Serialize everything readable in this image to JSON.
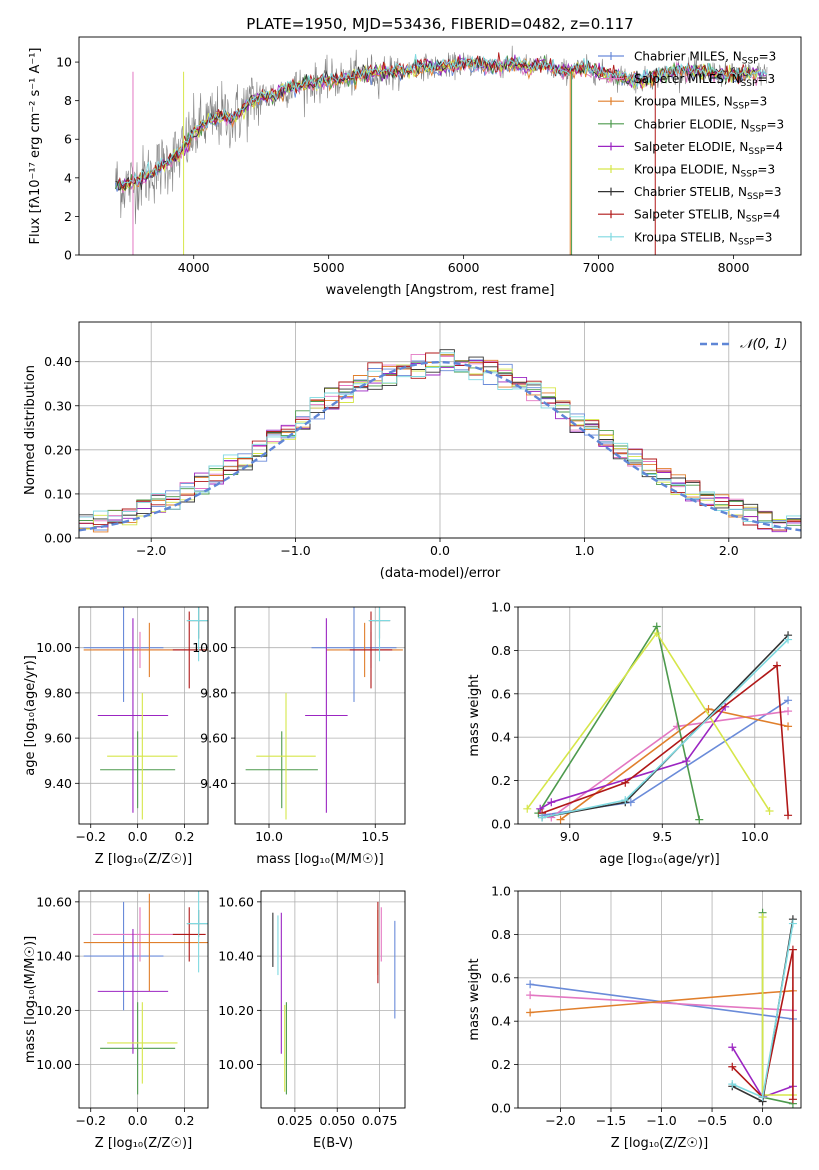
{
  "figure_title": "PLATE=1950, MJD=53436, FIBERID=0482, z=0.117",
  "models": [
    {
      "name": "Chabrier MILES",
      "nssp": "3",
      "color": "#6a8bd9"
    },
    {
      "name": "Salpeter MILES",
      "nssp": "3",
      "color": "#e377c2"
    },
    {
      "name": "Kroupa MILES",
      "nssp": "3",
      "color": "#e07f2c"
    },
    {
      "name": "Chabrier ELODIE",
      "nssp": "3",
      "color": "#4d9a4d"
    },
    {
      "name": "Salpeter ELODIE",
      "nssp": "4",
      "color": "#9b25c2"
    },
    {
      "name": "Kroupa ELODIE",
      "nssp": "3",
      "color": "#d6e64a"
    },
    {
      "name": "Chabrier STELIB",
      "nssp": "3",
      "color": "#333333"
    },
    {
      "name": "Salpeter STELIB",
      "nssp": "4",
      "color": "#b01818"
    },
    {
      "name": "Kroupa STELIB",
      "nssp": "3",
      "color": "#7fd9e0"
    }
  ],
  "chart_data": [
    {
      "id": "spectrum",
      "type": "line",
      "xlabel": "wavelength [Angstrom, rest frame]",
      "ylabel": "Flux [fλ10⁻¹⁷ erg cm⁻² s⁻¹ A⁻¹]",
      "xlim": [
        3150,
        8500
      ],
      "ylim": [
        0,
        11.3
      ],
      "xticks": [
        4000,
        5000,
        6000,
        7000,
        8000
      ],
      "yticks": [
        0,
        2,
        4,
        6,
        8,
        10
      ],
      "data_color": "#808080",
      "data_range": [
        3420,
        8250
      ],
      "continuum": [
        [
          3420,
          3.7
        ],
        [
          3500,
          3.6
        ],
        [
          3600,
          3.9
        ],
        [
          3700,
          4.3
        ],
        [
          3800,
          4.8
        ],
        [
          3900,
          5.3
        ],
        [
          4000,
          6.3
        ],
        [
          4100,
          6.9
        ],
        [
          4200,
          7.2
        ],
        [
          4300,
          7.1
        ],
        [
          4400,
          7.8
        ],
        [
          4500,
          8.2
        ],
        [
          4600,
          8.3
        ],
        [
          4700,
          8.7
        ],
        [
          4800,
          8.8
        ],
        [
          4900,
          8.9
        ],
        [
          5000,
          9.1
        ],
        [
          5100,
          9.1
        ],
        [
          5200,
          9.3
        ],
        [
          5300,
          9.4
        ],
        [
          5400,
          9.5
        ],
        [
          5500,
          9.5
        ],
        [
          5600,
          9.6
        ],
        [
          5700,
          9.8
        ],
        [
          5800,
          9.7
        ],
        [
          5900,
          9.8
        ],
        [
          6000,
          9.9
        ],
        [
          6100,
          9.9
        ],
        [
          6200,
          9.8
        ],
        [
          6300,
          9.8
        ],
        [
          6400,
          9.9
        ],
        [
          6500,
          9.7
        ],
        [
          6600,
          9.9
        ],
        [
          6700,
          9.5
        ],
        [
          6800,
          9.6
        ],
        [
          6900,
          9.7
        ],
        [
          7000,
          9.5
        ],
        [
          7100,
          9.3
        ],
        [
          7200,
          9.2
        ],
        [
          7300,
          9.0
        ],
        [
          7400,
          9.2
        ],
        [
          7500,
          9.4
        ],
        [
          7600,
          9.6
        ],
        [
          7700,
          9.5
        ],
        [
          7800,
          9.5
        ],
        [
          7900,
          9.4
        ],
        [
          8000,
          9.3
        ],
        [
          8100,
          9.4
        ],
        [
          8250,
          9.4
        ]
      ],
      "legend_position": "right",
      "grid": false
    },
    {
      "id": "residuals",
      "type": "histogram",
      "xlabel": "(data-model)/error",
      "ylabel": "Normed distribution",
      "xlim": [
        -2.5,
        2.5
      ],
      "ylim": [
        0,
        0.49
      ],
      "xticks": [
        -2,
        -1,
        0,
        1,
        2
      ],
      "yticks": [
        0.0,
        0.1,
        0.2,
        0.3,
        0.4
      ],
      "bin_width": 0.1,
      "reference": {
        "label": "𝒩(0, 1)",
        "type": "gaussian",
        "mean": 0,
        "sigma": 1
      },
      "legend_position": "top-right",
      "grid": true
    },
    {
      "id": "age-vs-z",
      "type": "errorbar",
      "xlabel": "Z [log₁₀(Z/Z☉)]",
      "ylabel": "age  [log₁₀(age/yr)]",
      "xlim": [
        -0.25,
        0.3
      ],
      "ylim": [
        9.22,
        10.18
      ],
      "xticks": [
        -0.2,
        0.0,
        0.2
      ],
      "yticks": [
        9.4,
        9.6,
        9.8,
        10.0
      ],
      "points": [
        {
          "model": 0,
          "x": -0.06,
          "y": 10.0,
          "xerr": 0.17,
          "yerr": 0.24
        },
        {
          "model": 1,
          "x": 0.01,
          "y": 9.99,
          "xerr": 0.2,
          "yerr": 0.08
        },
        {
          "model": 2,
          "x": 0.05,
          "y": 9.99,
          "xerr": 0.28,
          "yerr": 0.12
        },
        {
          "model": 3,
          "x": 0.0,
          "y": 9.46,
          "xerr": 0.16,
          "yerr": 0.17
        },
        {
          "model": 4,
          "x": -0.02,
          "y": 9.7,
          "xerr": 0.15,
          "yerr": 0.43
        },
        {
          "model": 5,
          "x": 0.02,
          "y": 9.52,
          "xerr": 0.15,
          "yerr": 0.28
        },
        {
          "model": 6,
          "x": 0.26,
          "y": 10.12,
          "xerr": 0.05,
          "yerr": 0.08
        },
        {
          "model": 7,
          "x": 0.22,
          "y": 9.99,
          "xerr": 0.07,
          "yerr": 0.17
        },
        {
          "model": 8,
          "x": 0.26,
          "y": 10.12,
          "xerr": 0.05,
          "yerr": 0.18
        }
      ],
      "grid": true
    },
    {
      "id": "age-vs-mass",
      "type": "errorbar",
      "xlabel": "mass [log₁₀(M/M☉)]",
      "ylabel": "",
      "xlim": [
        9.84,
        10.64
      ],
      "ylim": [
        9.22,
        10.18
      ],
      "xticks": [
        10.0,
        10.5
      ],
      "yticks": [
        9.4,
        9.6,
        9.8,
        10.0
      ],
      "points": [
        {
          "model": 0,
          "x": 10.4,
          "y": 10.0,
          "xerr": 0.2,
          "yerr": 0.24
        },
        {
          "model": 1,
          "x": 10.48,
          "y": 9.99,
          "xerr": 0.1,
          "yerr": 0.08
        },
        {
          "model": 2,
          "x": 10.45,
          "y": 9.99,
          "xerr": 0.18,
          "yerr": 0.12
        },
        {
          "model": 3,
          "x": 10.06,
          "y": 9.46,
          "xerr": 0.17,
          "yerr": 0.17
        },
        {
          "model": 4,
          "x": 10.27,
          "y": 9.7,
          "xerr": 0.1,
          "yerr": 0.43
        },
        {
          "model": 5,
          "x": 10.08,
          "y": 9.52,
          "xerr": 0.14,
          "yerr": 0.28
        },
        {
          "model": 6,
          "x": 10.52,
          "y": 10.12,
          "xerr": 0.05,
          "yerr": 0.08
        },
        {
          "model": 7,
          "x": 10.48,
          "y": 9.99,
          "xerr": 0.1,
          "yerr": 0.17
        },
        {
          "model": 8,
          "x": 10.52,
          "y": 10.12,
          "xerr": 0.05,
          "yerr": 0.18
        }
      ],
      "grid": true
    },
    {
      "id": "weight-vs-age",
      "type": "line",
      "xlabel": "age  [log₁₀(age/yr)]",
      "ylabel": "mass weight",
      "xlim": [
        8.72,
        10.25
      ],
      "ylim": [
        0,
        1.0
      ],
      "xticks": [
        9.0,
        9.5,
        10.0
      ],
      "yticks": [
        0.0,
        0.2,
        0.4,
        0.6,
        0.8,
        1.0
      ],
      "series": [
        {
          "model": 0,
          "x": [
            8.85,
            9.33,
            10.18
          ],
          "y": [
            0.04,
            0.1,
            0.57
          ]
        },
        {
          "model": 1,
          "x": [
            8.9,
            9.58,
            10.18
          ],
          "y": [
            0.03,
            0.45,
            0.52
          ]
        },
        {
          "model": 2,
          "x": [
            8.95,
            9.75,
            10.18
          ],
          "y": [
            0.02,
            0.53,
            0.45
          ]
        },
        {
          "model": 3,
          "x": [
            8.83,
            9.47,
            9.7
          ],
          "y": [
            0.05,
            0.91,
            0.02
          ]
        },
        {
          "model": 4,
          "x": [
            8.84,
            8.9,
            9.63,
            9.84
          ],
          "y": [
            0.07,
            0.1,
            0.29,
            0.54
          ]
        },
        {
          "model": 5,
          "x": [
            8.77,
            9.47,
            10.08
          ],
          "y": [
            0.07,
            0.88,
            0.06
          ]
        },
        {
          "model": 6,
          "x": [
            8.85,
            9.3,
            10.18
          ],
          "y": [
            0.03,
            0.1,
            0.87
          ]
        },
        {
          "model": 7,
          "x": [
            8.85,
            9.3,
            10.12,
            10.18
          ],
          "y": [
            0.05,
            0.19,
            0.73,
            0.04
          ]
        },
        {
          "model": 8,
          "x": [
            8.85,
            9.3,
            10.18
          ],
          "y": [
            0.03,
            0.11,
            0.85
          ]
        }
      ],
      "grid": true
    },
    {
      "id": "mass-vs-z",
      "type": "errorbar",
      "xlabel": "Z [log₁₀(Z/Z☉)]",
      "ylabel": "mass [log₁₀(M/M☉)]",
      "xlim": [
        -0.25,
        0.3
      ],
      "ylim": [
        9.84,
        10.64
      ],
      "xticks": [
        -0.2,
        0.0,
        0.2
      ],
      "yticks": [
        10.0,
        10.2,
        10.4,
        10.6
      ],
      "points": [
        {
          "model": 0,
          "x": -0.06,
          "y": 10.4,
          "xerr": 0.17,
          "yerr": 0.2
        },
        {
          "model": 1,
          "x": 0.01,
          "y": 10.48,
          "xerr": 0.2,
          "yerr": 0.1
        },
        {
          "model": 2,
          "x": 0.05,
          "y": 10.45,
          "xerr": 0.28,
          "yerr": 0.18
        },
        {
          "model": 3,
          "x": 0.0,
          "y": 10.06,
          "xerr": 0.16,
          "yerr": 0.17
        },
        {
          "model": 4,
          "x": -0.02,
          "y": 10.27,
          "xerr": 0.15,
          "yerr": 0.23
        },
        {
          "model": 5,
          "x": 0.02,
          "y": 10.08,
          "xerr": 0.15,
          "yerr": 0.15
        },
        {
          "model": 6,
          "x": 0.26,
          "y": 10.52,
          "xerr": 0.05,
          "yerr": 0.05
        },
        {
          "model": 7,
          "x": 0.22,
          "y": 10.48,
          "xerr": 0.07,
          "yerr": 0.1
        },
        {
          "model": 8,
          "x": 0.26,
          "y": 10.52,
          "xerr": 0.05,
          "yerr": 0.18
        }
      ],
      "grid": true
    },
    {
      "id": "mass-vs-ebv",
      "type": "errorbar",
      "xlabel": "E(B-V)",
      "ylabel": "",
      "xlim": [
        0.005,
        0.09
      ],
      "ylim": [
        9.84,
        10.64
      ],
      "xticks": [
        0.025,
        0.05,
        0.075
      ],
      "xtick_labels": [
        "0.025",
        "0.050",
        "0.075"
      ],
      "yticks": [
        10.0,
        10.2,
        10.4,
        10.6
      ],
      "points": [
        {
          "model": 0,
          "x": 0.084,
          "y": 10.35,
          "xerr": 0,
          "yerr": 0.18
        },
        {
          "model": 1,
          "x": 0.076,
          "y": 10.48,
          "xerr": 0,
          "yerr": 0.1
        },
        {
          "model": 2,
          "x": 0.074,
          "y": 10.45,
          "xerr": 0,
          "yerr": 0.12
        },
        {
          "model": 3,
          "x": 0.02,
          "y": 10.06,
          "xerr": 0,
          "yerr": 0.17
        },
        {
          "model": 4,
          "x": 0.017,
          "y": 10.3,
          "xerr": 0,
          "yerr": 0.26
        },
        {
          "model": 5,
          "x": 0.019,
          "y": 10.06,
          "xerr": 0,
          "yerr": 0.16
        },
        {
          "model": 6,
          "x": 0.012,
          "y": 10.46,
          "xerr": 0,
          "yerr": 0.1
        },
        {
          "model": 7,
          "x": 0.074,
          "y": 10.45,
          "xerr": 0,
          "yerr": 0.15
        },
        {
          "model": 8,
          "x": 0.015,
          "y": 10.44,
          "xerr": 0,
          "yerr": 0.11
        }
      ],
      "grid": true
    },
    {
      "id": "weight-vs-z",
      "type": "line",
      "xlabel": "Z [log₁₀(Z/Z☉)]",
      "ylabel": "mass weight",
      "xlim": [
        -2.42,
        0.38
      ],
      "ylim": [
        0,
        1.0
      ],
      "xticks": [
        -2.0,
        -1.5,
        -1.0,
        -0.5,
        0.0
      ],
      "yticks": [
        0.0,
        0.2,
        0.4,
        0.6,
        0.8,
        1.0
      ],
      "series": [
        {
          "model": 0,
          "x": [
            -2.3,
            0.3
          ],
          "y": [
            0.57,
            0.41
          ]
        },
        {
          "model": 1,
          "x": [
            -2.3,
            0.3
          ],
          "y": [
            0.52,
            0.45
          ]
        },
        {
          "model": 2,
          "x": [
            -2.3,
            0.0,
            0.3
          ],
          "y": [
            0.44,
            0.53,
            0.54
          ]
        },
        {
          "model": 3,
          "x": [
            0.0,
            0.0,
            0.3
          ],
          "y": [
            0.9,
            0.05,
            0.02
          ]
        },
        {
          "model": 4,
          "x": [
            -0.3,
            0.0,
            0.3
          ],
          "y": [
            0.28,
            0.05,
            0.1
          ]
        },
        {
          "model": 5,
          "x": [
            0.0,
            0.0,
            0.3
          ],
          "y": [
            0.88,
            0.06,
            0.06
          ]
        },
        {
          "model": 6,
          "x": [
            -0.3,
            0.0,
            0.3
          ],
          "y": [
            0.1,
            0.03,
            0.87
          ]
        },
        {
          "model": 7,
          "x": [
            -0.3,
            0.0,
            0.3,
            0.3
          ],
          "y": [
            0.19,
            0.05,
            0.73,
            0.04
          ]
        },
        {
          "model": 8,
          "x": [
            -0.3,
            0.0,
            0.3
          ],
          "y": [
            0.11,
            0.05,
            0.85
          ]
        }
      ],
      "grid": true
    }
  ]
}
